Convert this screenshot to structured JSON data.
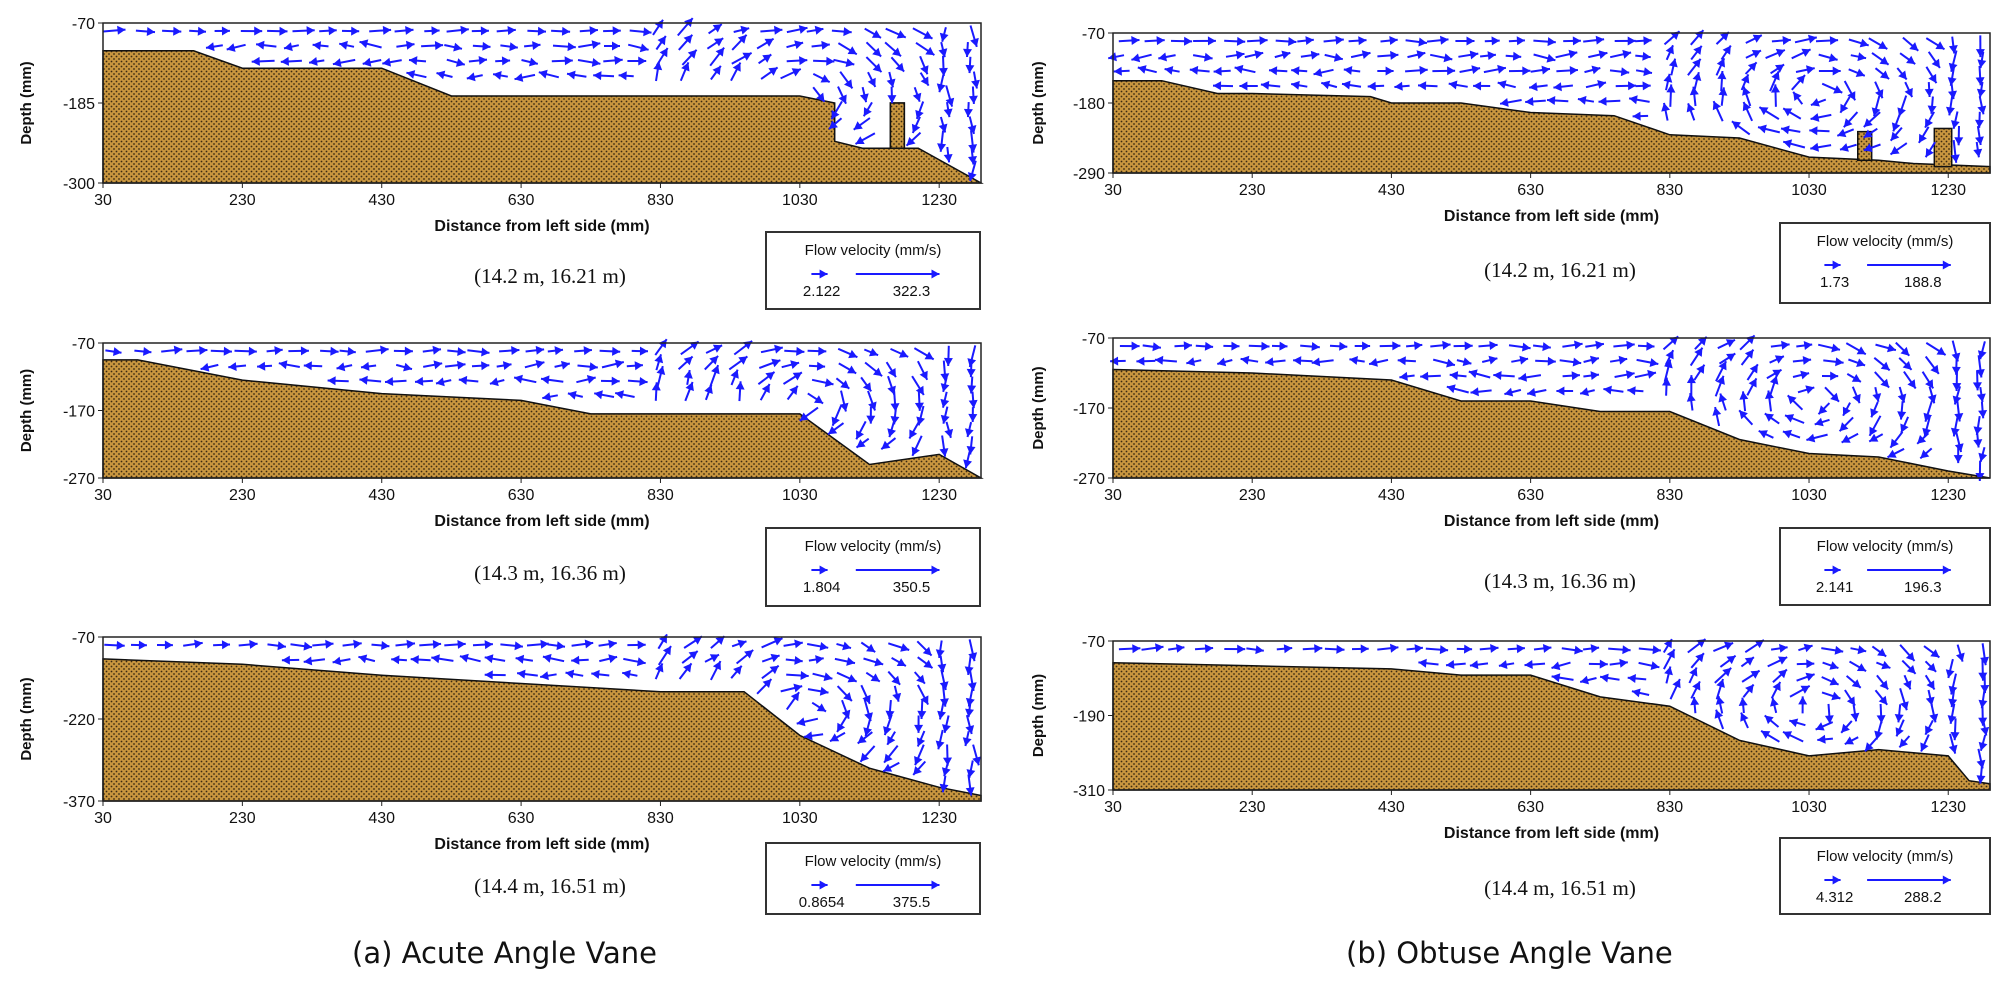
{
  "colors": {
    "vector": "#1a1aff",
    "bed": "#c8963f",
    "bed_dot": "#3a2a10",
    "frame": "#222222"
  },
  "captions": {
    "a": "(a) Acute Angle Vane",
    "b": "(b) Obtuse Angle Vane"
  },
  "chart_data": [
    {
      "type": "vector-field",
      "column": "a",
      "row": 1,
      "ylabel": "Depth (mm)",
      "xlabel": "Distance from left side (mm)",
      "xlim": [
        30,
        1290
      ],
      "ylim": [
        -300,
        -70
      ],
      "x_ticks": [
        "30",
        "230",
        "430",
        "630",
        "830",
        "1030",
        "1230"
      ],
      "y_ticks": [
        "-70",
        "-185",
        "-300"
      ],
      "location": "(14.2 m, 16.21 m)",
      "legend": {
        "title": "Flow velocity (mm/s)",
        "min": "2.122",
        "max": "322.3"
      },
      "bed_profile": {
        "x": [
          30,
          160,
          230,
          430,
          530,
          1030,
          1080,
          1080,
          1120,
          1140,
          1140,
          1160,
          1160,
          1180,
          1180,
          1200,
          1290
        ],
        "y": [
          -110,
          -110,
          -135,
          -135,
          -175,
          -175,
          -185,
          -240,
          -250,
          -250,
          -250,
          -250,
          -185,
          -185,
          -250,
          -250,
          -300
        ]
      },
      "vanes": [
        {
          "x0": 1160,
          "x1": 1180,
          "top": -185,
          "bottom": -250
        }
      ]
    },
    {
      "type": "vector-field",
      "column": "a",
      "row": 2,
      "ylabel": "Depth (mm)",
      "xlabel": "Distance from left side (mm)",
      "xlim": [
        30,
        1290
      ],
      "ylim": [
        -270,
        -70
      ],
      "x_ticks": [
        "30",
        "230",
        "430",
        "630",
        "830",
        "1030",
        "1230"
      ],
      "y_ticks": [
        "-70",
        "-170",
        "-270"
      ],
      "location": "(14.3 m, 16.36 m)",
      "legend": {
        "title": "Flow velocity (mm/s)",
        "min": "1.804",
        "max": "350.5"
      },
      "bed_profile": {
        "x": [
          30,
          80,
          230,
          430,
          530,
          630,
          730,
          1030,
          1130,
          1230,
          1290
        ],
        "y": [
          -95,
          -95,
          -125,
          -145,
          -150,
          -155,
          -175,
          -175,
          -250,
          -235,
          -270
        ]
      },
      "vanes": []
    },
    {
      "type": "vector-field",
      "column": "a",
      "row": 3,
      "ylabel": "Depth (mm)",
      "xlabel": "Distance from left side (mm)",
      "xlim": [
        30,
        1290
      ],
      "ylim": [
        -370,
        -70
      ],
      "x_ticks": [
        "30",
        "230",
        "430",
        "630",
        "830",
        "1030",
        "1230"
      ],
      "y_ticks": [
        "-70",
        "-220",
        "-370"
      ],
      "location": "(14.4 m, 16.51 m)",
      "legend": {
        "title": "Flow velocity (mm/s)",
        "min": "0.8654",
        "max": "375.5"
      },
      "bed_profile": {
        "x": [
          30,
          230,
          430,
          630,
          830,
          950,
          1030,
          1130,
          1230,
          1290
        ],
        "y": [
          -110,
          -120,
          -140,
          -155,
          -170,
          -170,
          -250,
          -310,
          -345,
          -360
        ]
      },
      "vanes": []
    },
    {
      "type": "vector-field",
      "column": "b",
      "row": 1,
      "ylabel": "Depth (mm)",
      "xlabel": "Distance from left side (mm)",
      "xlim": [
        30,
        1290
      ],
      "ylim": [
        -290,
        -70
      ],
      "x_ticks": [
        "30",
        "230",
        "430",
        "630",
        "830",
        "1030",
        "1230"
      ],
      "y_ticks": [
        "-70",
        "-180",
        "-290"
      ],
      "location": "(14.2 m, 16.21 m)",
      "legend": {
        "title": "Flow velocity (mm/s)",
        "min": "1.73",
        "max": "188.8"
      },
      "bed_profile": {
        "x": [
          30,
          100,
          180,
          230,
          400,
          430,
          530,
          630,
          750,
          830,
          930,
          1030,
          1130,
          1180,
          1290
        ],
        "y": [
          -145,
          -145,
          -165,
          -165,
          -170,
          -180,
          -180,
          -195,
          -200,
          -230,
          -235,
          -265,
          -270,
          -275,
          -280
        ]
      },
      "vanes": [
        {
          "x0": 1100,
          "x1": 1120,
          "top": -225,
          "bottom": -270
        },
        {
          "x0": 1210,
          "x1": 1235,
          "top": -220,
          "bottom": -280
        }
      ]
    },
    {
      "type": "vector-field",
      "column": "b",
      "row": 2,
      "ylabel": "Depth (mm)",
      "xlabel": "Distance from left side (mm)",
      "xlim": [
        30,
        1290
      ],
      "ylim": [
        -270,
        -70
      ],
      "x_ticks": [
        "30",
        "230",
        "430",
        "630",
        "830",
        "1030",
        "1230"
      ],
      "y_ticks": [
        "-70",
        "-170",
        "-270"
      ],
      "location": "(14.3 m, 16.36 m)",
      "legend": {
        "title": "Flow velocity (mm/s)",
        "min": "2.141",
        "max": "196.3"
      },
      "bed_profile": {
        "x": [
          30,
          230,
          430,
          530,
          630,
          730,
          830,
          930,
          1030,
          1130,
          1230,
          1290
        ],
        "y": [
          -115,
          -120,
          -130,
          -160,
          -160,
          -175,
          -175,
          -215,
          -235,
          -240,
          -260,
          -270
        ]
      },
      "vanes": []
    },
    {
      "type": "vector-field",
      "column": "b",
      "row": 3,
      "ylabel": "Depth (mm)",
      "xlabel": "Distance from left side (mm)",
      "xlim": [
        30,
        1290
      ],
      "ylim": [
        -310,
        -70
      ],
      "x_ticks": [
        "30",
        "230",
        "430",
        "630",
        "830",
        "1030",
        "1230"
      ],
      "y_ticks": [
        "-70",
        "-190",
        "-310"
      ],
      "location": "(14.4 m, 16.51 m)",
      "legend": {
        "title": "Flow velocity (mm/s)",
        "min": "4.312",
        "max": "288.2"
      },
      "bed_profile": {
        "x": [
          30,
          230,
          430,
          530,
          630,
          730,
          830,
          930,
          1030,
          1130,
          1230,
          1260,
          1290
        ],
        "y": [
          -105,
          -110,
          -115,
          -125,
          -125,
          -160,
          -175,
          -230,
          -255,
          -245,
          -255,
          -295,
          -300
        ]
      },
      "vanes": []
    }
  ]
}
